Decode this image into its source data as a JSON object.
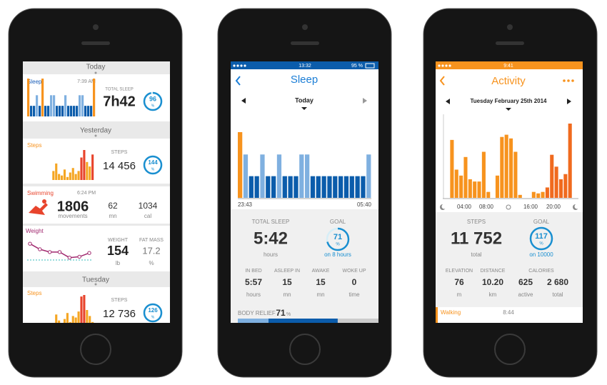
{
  "phone1": {
    "today": "Today",
    "sleep": {
      "label": "Sleep",
      "time": "7:39 AM",
      "stat_label": "TOTAL SLEEP",
      "value": "7h42",
      "goal": 96,
      "unit": "%",
      "bars": [
        100,
        28,
        28,
        56,
        28,
        100,
        28,
        28,
        56,
        56,
        28,
        28,
        28,
        56,
        28,
        28,
        28,
        28,
        56,
        56,
        28,
        28,
        28,
        100
      ]
    },
    "yesterday": "Yesterday",
    "steps": {
      "label": "Steps",
      "stat_label": "STEPS",
      "value": "14 456",
      "goal": 144,
      "unit": "%",
      "bars": [
        0,
        0,
        0,
        0,
        0,
        0,
        0,
        0,
        0,
        30,
        55,
        20,
        15,
        35,
        10,
        25,
        40,
        20,
        30,
        75,
        100,
        60,
        45,
        85
      ]
    },
    "swimming": {
      "label": "Swimming",
      "time": "6:24 PM",
      "movements": 1806,
      "movements_label": "movements",
      "duration": 62,
      "duration_unit": "mn",
      "calories": 1034,
      "calories_unit": "cal"
    },
    "weight": {
      "label": "Weight",
      "weight_label": "WEIGHT",
      "weight": 154,
      "weight_unit": "lb",
      "fat_label": "FAT MASS",
      "fat": 17.2,
      "fat_unit": "%",
      "points": [
        8,
        5,
        3.5,
        3.5,
        0.5,
        1,
        3
      ]
    },
    "tuesday": "Tuesday",
    "steps2": {
      "label": "Steps",
      "stat_label": "STEPS",
      "value": "12 736",
      "goal": 126,
      "unit": "%",
      "bars": [
        0,
        0,
        0,
        0,
        0,
        0,
        0,
        0,
        0,
        0,
        35,
        15,
        0,
        20,
        40,
        10,
        30,
        25,
        45,
        95,
        100,
        50,
        30,
        10
      ]
    }
  },
  "phone2": {
    "time": "13:32",
    "battery": "95 %",
    "title": "Sleep",
    "day": "Today",
    "bars": [
      100,
      66,
      33,
      33,
      66,
      33,
      33,
      66,
      33,
      33,
      33,
      66,
      66,
      33,
      33,
      33,
      33,
      33,
      33,
      33,
      33,
      33,
      33,
      66
    ],
    "start": "23:43",
    "end": "05:40",
    "total_label": "TOTAL SLEEP",
    "total": "5:42",
    "total_unit": "hours",
    "goal_label": "GOAL",
    "goal": 71,
    "goal_unit": "%",
    "goal_note": "on 8 hours",
    "stats": [
      {
        "label": "IN BED",
        "value": "5:57",
        "unit": "hours"
      },
      {
        "label": "ASLEEP IN",
        "value": 15,
        "unit": "mn"
      },
      {
        "label": "AWAKE",
        "value": 15,
        "unit": "mn"
      },
      {
        "label": "WOKE UP",
        "value": 0,
        "unit": "time"
      }
    ],
    "relief_label": "BODY RELIEF",
    "relief": 71,
    "relief_unit": "%"
  },
  "phone3": {
    "time": "9:41",
    "title": "Activity",
    "date": "Tuesday February 25th 2014",
    "bars": [
      0,
      78,
      38,
      30,
      55,
      25,
      22,
      22,
      62,
      8,
      0,
      30,
      82,
      85,
      80,
      62,
      4,
      0,
      0,
      8,
      6,
      8,
      14,
      58,
      42,
      25,
      32,
      100
    ],
    "hours": [
      "04:00",
      "08:00",
      "16:00",
      "20:00"
    ],
    "steps_label": "STEPS",
    "steps": "11 752",
    "steps_unit": "total",
    "goal_label": "GOAL",
    "goal": 117,
    "goal_unit": "%",
    "goal_note": "on 10000",
    "elevation_label": "ELEVATION",
    "elevation": 76,
    "elevation_unit": "m",
    "distance_label": "DISTANCE",
    "distance": "10.20",
    "distance_unit": "km",
    "calories_label": "CALORIES",
    "calories_active": 625,
    "calories_active_unit": "active",
    "calories_total": "2 680",
    "calories_total_unit": "total",
    "walking": "Walking",
    "walking_time": "8:44"
  }
}
